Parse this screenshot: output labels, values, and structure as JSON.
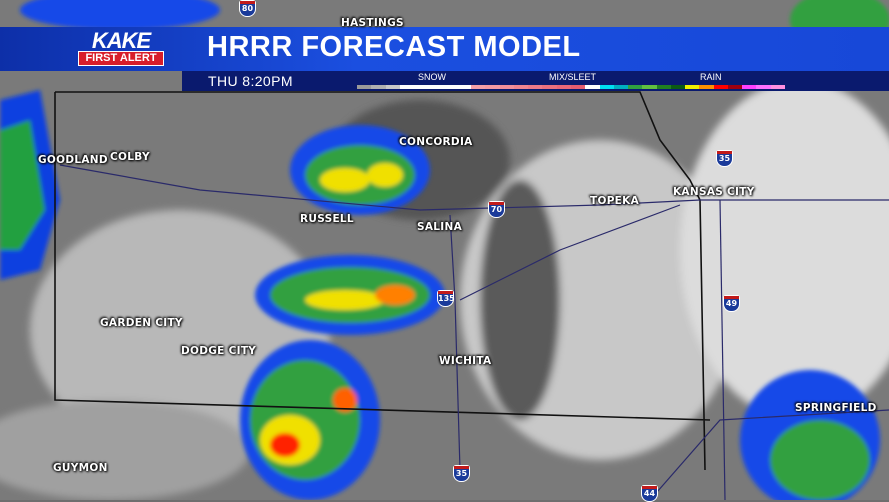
{
  "header": {
    "logo_top": "KAKE",
    "logo_bottom": "FIRST ALERT",
    "title": "HRRR FORECAST MODEL",
    "time": "THU  8:20PM"
  },
  "legend": {
    "labels": [
      "SNOW",
      "MIX/SLEET",
      "RAIN"
    ],
    "snow_colors": [
      "#9a9a9a",
      "#b0b0b0",
      "#c8c8c8",
      "#ffffff",
      "#ffffff",
      "#ffffff",
      "#ffffff",
      "#ffffff"
    ],
    "mix_colors": [
      "#f4a0a8",
      "#f49aa3",
      "#f28f9a",
      "#f08590",
      "#ee7a88",
      "#ea707e",
      "#e86678",
      "#e65c70"
    ],
    "rain_colors": [
      "#ffffff",
      "#00e0f0",
      "#00b0c0",
      "#30a040",
      "#60c040",
      "#208020",
      "#0c5a14",
      "#f0f000",
      "#ff9000",
      "#ff0000",
      "#a00010",
      "#ff40ff",
      "#ff70ff",
      "#ff90e0"
    ]
  },
  "cities": [
    "HASTINGS",
    "CONCORDIA",
    "GOODLAND",
    "COLBY",
    "RUSSELL",
    "SALINA",
    "TOPEKA",
    "KANSAS CITY",
    "GARDEN CITY",
    "DODGE CITY",
    "WICHITA",
    "SPRINGFIELD",
    "GUYMON"
  ],
  "highways": [
    "80",
    "70",
    "135",
    "35",
    "49",
    "35",
    "44"
  ]
}
